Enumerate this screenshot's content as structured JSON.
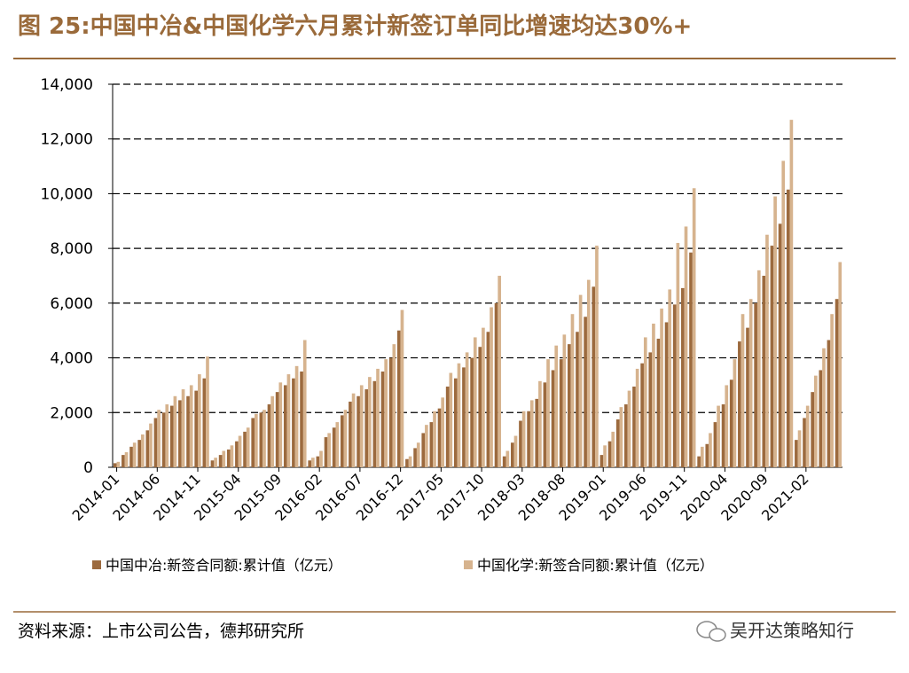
{
  "chart_data": {
    "type": "bar",
    "title": "图 25:中国中冶&中国化学六月累计新签订单同比增速均达30%+",
    "categories": [
      "2014-01",
      null,
      null,
      null,
      null,
      "2014-06",
      null,
      null,
      null,
      null,
      "2014-11",
      null,
      null,
      null,
      null,
      "2015-04",
      null,
      null,
      null,
      null,
      "2015-09",
      null,
      null,
      null,
      null,
      "2016-02",
      null,
      null,
      null,
      null,
      "2016-07",
      null,
      null,
      null,
      null,
      "2016-12",
      null,
      null,
      null,
      null,
      "2017-05",
      null,
      null,
      null,
      null,
      "2017-10",
      null,
      null,
      null,
      null,
      "2018-03",
      null,
      null,
      null,
      null,
      "2018-08",
      null,
      null,
      null,
      null,
      "2019-01",
      null,
      null,
      null,
      null,
      "2019-06",
      null,
      null,
      null,
      null,
      "2019-11",
      null,
      null,
      null,
      null,
      "2020-04",
      null,
      null,
      null,
      null,
      "2020-09",
      null,
      null,
      null,
      null,
      "2021-02",
      null,
      null,
      null,
      null
    ],
    "series": [
      {
        "name": "中国中冶:新签合同额:累计值（亿元）",
        "color": "#9c6a3e",
        "values": [
          150,
          450,
          750,
          1000,
          1350,
          1800,
          2000,
          2250,
          2450,
          2600,
          2800,
          3250,
          250,
          450,
          650,
          950,
          1300,
          1800,
          2000,
          2300,
          2750,
          3000,
          3250,
          3500,
          250,
          400,
          1100,
          1450,
          1900,
          2400,
          2600,
          2850,
          3150,
          3500,
          4000,
          5000,
          300,
          700,
          1250,
          1650,
          2150,
          2950,
          3250,
          3650,
          4000,
          4400,
          4950,
          6000,
          400,
          900,
          1700,
          2050,
          2500,
          3100,
          3550,
          3950,
          4500,
          4950,
          5500,
          6600,
          450,
          950,
          1750,
          2300,
          2950,
          3800,
          4200,
          4700,
          5300,
          5950,
          6550,
          7850,
          400,
          850,
          1650,
          2300,
          3200,
          4600,
          5100,
          6000,
          7000,
          8100,
          8900,
          10150,
          1000,
          1800,
          2750,
          3550,
          4650,
          6150
        ]
      },
      {
        "name": "中国化学:新签合同额:累计值（亿元）",
        "color": "#d6b38e",
        "values": [
          200,
          550,
          900,
          1200,
          1600,
          2100,
          2300,
          2600,
          2850,
          3000,
          3400,
          4050,
          350,
          600,
          800,
          1150,
          1450,
          1950,
          2100,
          2600,
          3100,
          3400,
          3700,
          4650,
          350,
          600,
          1250,
          1650,
          2100,
          2700,
          3000,
          3300,
          3600,
          3950,
          4500,
          5750,
          400,
          900,
          1550,
          2050,
          2550,
          3450,
          3800,
          4200,
          4750,
          5100,
          5850,
          7000,
          600,
          1150,
          2050,
          2450,
          3150,
          3950,
          4450,
          4850,
          5600,
          6300,
          6850,
          8100,
          800,
          1300,
          2200,
          2800,
          3600,
          4750,
          5250,
          5800,
          6500,
          8200,
          8800,
          10200,
          750,
          1250,
          2250,
          3000,
          3950,
          5600,
          6150,
          7200,
          8500,
          9900,
          11200,
          12700,
          1350,
          2250,
          3350,
          4350,
          5600,
          7500
        ]
      }
    ],
    "ylim": [
      0,
      14000
    ],
    "yticks": [
      0,
      {
        "value": 2000,
        "label": "2,000"
      },
      {
        "value": 4000,
        "label": "4,000"
      },
      {
        "value": 6000,
        "label": "6,000"
      },
      {
        "value": 8000,
        "label": "8,000"
      },
      {
        "value": 10000,
        "label": "10,000"
      },
      {
        "value": 12000,
        "label": "12,000"
      },
      {
        "value": 14000,
        "label": "14,000"
      }
    ],
    "grid": true
  },
  "source": "资料来源：上市公司公告，德邦研究所",
  "watermark": "吴开达策略知行"
}
